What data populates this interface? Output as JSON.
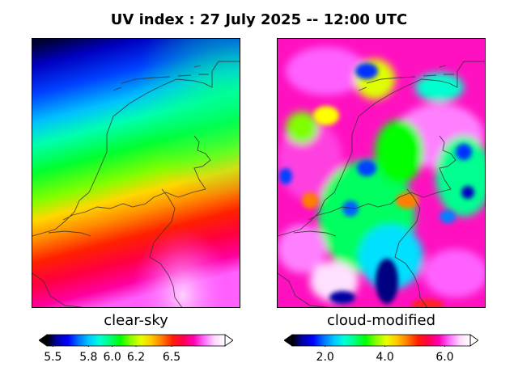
{
  "title": "UV index :  27 July 2025  --  12:00 UTC",
  "panels": [
    {
      "caption": "clear-sky",
      "colorbar": {
        "min": 5.45,
        "max": 6.95,
        "ticks": [
          "5.5",
          "5.8",
          "6.0",
          "6.2",
          "6.5"
        ],
        "tick_values": [
          5.5,
          5.8,
          6.0,
          6.2,
          6.5
        ]
      }
    },
    {
      "caption": "cloud-modified",
      "colorbar": {
        "min": 0.9,
        "max": 6.85,
        "ticks": [
          "2.0",
          "4.0",
          "6.0"
        ],
        "tick_values": [
          2.0,
          4.0,
          6.0
        ]
      }
    }
  ],
  "colormap": [
    "#000000",
    "#0000a8",
    "#0000ff",
    "#0070ff",
    "#00c8ff",
    "#00ffd8",
    "#00ff7a",
    "#00ff00",
    "#8cff00",
    "#e8ff00",
    "#ffc800",
    "#ff7a00",
    "#ff1e00",
    "#ff0050",
    "#ff00b4",
    "#ff6aff",
    "#ffd8ff",
    "#ffffff"
  ]
}
